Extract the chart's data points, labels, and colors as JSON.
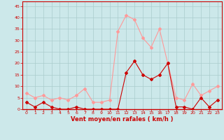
{
  "hours": [
    0,
    1,
    2,
    3,
    4,
    5,
    6,
    7,
    8,
    9,
    10,
    11,
    12,
    13,
    14,
    15,
    16,
    17,
    18,
    19,
    20,
    21,
    22,
    23
  ],
  "vent_moyen": [
    3,
    1,
    3,
    1,
    0,
    0,
    1,
    0,
    0,
    0,
    0,
    0,
    16,
    21,
    15,
    13,
    15,
    20,
    1,
    1,
    0,
    5,
    1,
    4
  ],
  "rafales": [
    7,
    5,
    6,
    4,
    5,
    4,
    6,
    9,
    3,
    3,
    4,
    34,
    41,
    39,
    31,
    27,
    35,
    20,
    5,
    4,
    11,
    6,
    8,
    10
  ],
  "bg_color": "#cce8ea",
  "grid_color": "#aacccc",
  "line_moyen_color": "#cc0000",
  "line_rafales_color": "#ff9999",
  "xlabel": "Vent moyen/en rafales ( km/h )",
  "ylim": [
    0,
    47
  ],
  "yticks": [
    0,
    5,
    10,
    15,
    20,
    25,
    30,
    35,
    40,
    45
  ],
  "xticks": [
    0,
    1,
    2,
    3,
    4,
    5,
    6,
    7,
    8,
    9,
    10,
    11,
    12,
    13,
    14,
    15,
    16,
    17,
    18,
    19,
    20,
    21,
    22,
    23
  ],
  "xlabel_color": "#cc0000",
  "tick_color": "#cc0000",
  "axis_color": "#cc0000",
  "spine_color": "#cc0000"
}
